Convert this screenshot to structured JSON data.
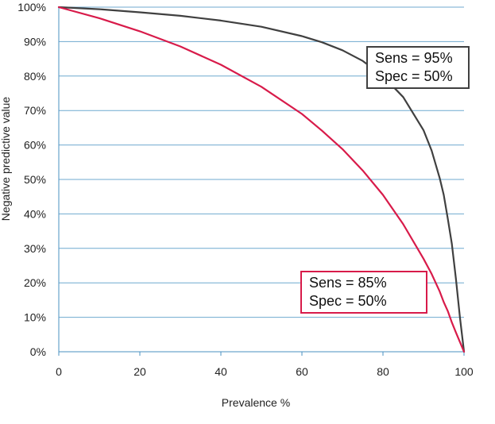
{
  "chart_data": {
    "type": "line",
    "xlabel": "Prevalence %",
    "ylabel": "Negative predictive value",
    "xlim": [
      0,
      100
    ],
    "ylim": [
      0,
      100
    ],
    "x_ticks": [
      "0",
      "20",
      "40",
      "60",
      "80",
      "100"
    ],
    "y_ticks": [
      "0%",
      "10%",
      "20%",
      "30%",
      "40%",
      "50%",
      "60%",
      "70%",
      "80%",
      "90%",
      "100%"
    ],
    "grid": "horizontal",
    "legend": "none",
    "series": [
      {
        "color": "#404040",
        "annotation": [
          "Sens = 95%",
          "Spec = 50%"
        ],
        "x": [
          0,
          10,
          20,
          30,
          40,
          50,
          60,
          65,
          70,
          75,
          80,
          85,
          90,
          92,
          94,
          95,
          96,
          97,
          98,
          99,
          100
        ],
        "y": [
          100,
          99.4,
          98.5,
          97.5,
          96.1,
          94.3,
          91.6,
          89.8,
          87.5,
          84.4,
          80.0,
          73.9,
          64.3,
          58.4,
          50.4,
          45.5,
          38.6,
          31.3,
          21.2,
          9.9,
          0
        ]
      },
      {
        "color": "#d81b4a",
        "annotation": [
          "Sens = 85%",
          "Spec = 50%"
        ],
        "x": [
          0,
          10,
          20,
          30,
          40,
          50,
          60,
          65,
          70,
          75,
          80,
          85,
          90,
          92,
          94,
          95,
          96,
          97,
          98,
          99,
          100
        ],
        "y": [
          100,
          96.8,
          93.0,
          88.6,
          83.3,
          76.9,
          69.0,
          64.1,
          58.8,
          52.6,
          45.5,
          37.0,
          27.0,
          22.6,
          17.5,
          14.4,
          11.8,
          8.5,
          5.6,
          2.8,
          0
        ]
      }
    ]
  }
}
